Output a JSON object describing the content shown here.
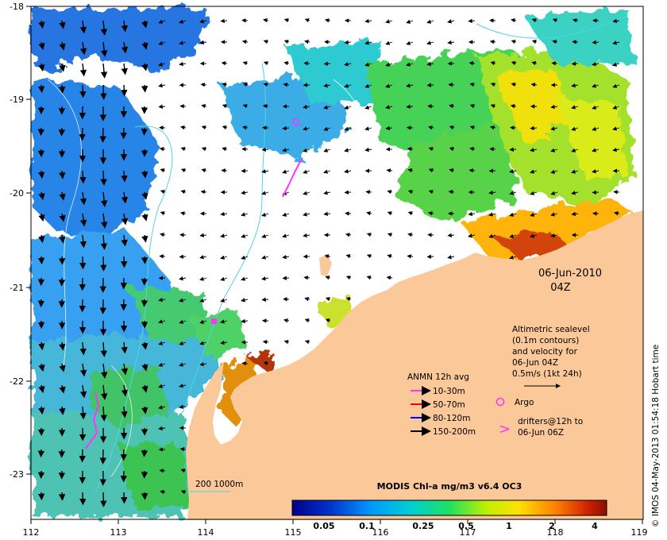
{
  "map": {
    "x_axis": {
      "ticks": [
        "112",
        "113",
        "114",
        "115",
        "116",
        "117",
        "118",
        "119"
      ]
    },
    "y_axis": {
      "ticks": [
        "-18",
        "-19",
        "-20",
        "-21",
        "-22",
        "-23"
      ]
    },
    "date_label": "06-Jun-2010",
    "time_label": "04Z",
    "credit": "© IMOS 04-May-2013 01:54:18 Hobart time",
    "colors": {
      "land": "#fbc89a",
      "arrow": "#000000",
      "contour": "#4fd6e0",
      "drifter": "#ff33ff",
      "argo": "#ff33ff"
    }
  },
  "legend": {
    "altimetry": {
      "line1": "Altimetric sealevel",
      "line2": "(0.1m contours)",
      "line3": "and velocity for",
      "line4": "06-Jun 04Z",
      "scale_label": "0.5m/s (1kt 24h)"
    },
    "anmn": {
      "title": "ANMN 12h avg",
      "items": [
        {
          "label": "10-30m",
          "color": "#ff33ff"
        },
        {
          "label": "50-70m",
          "color": "#ff0000"
        },
        {
          "label": "80-120m",
          "color": "#0000ff"
        },
        {
          "label": "150-200m",
          "color": "#000000"
        }
      ]
    },
    "argo_label": "Argo",
    "drifter_line1": "drifters@12h to",
    "drifter_line2": "06-Jun 06Z",
    "isobath_label": "200  1000m"
  },
  "colorbar": {
    "title": "MODIS Chl-a mg/m3 v6.4 OC3",
    "ticks": [
      "0.05",
      "0.1",
      "0.25",
      "0.5",
      "1",
      "2",
      "4"
    ]
  }
}
